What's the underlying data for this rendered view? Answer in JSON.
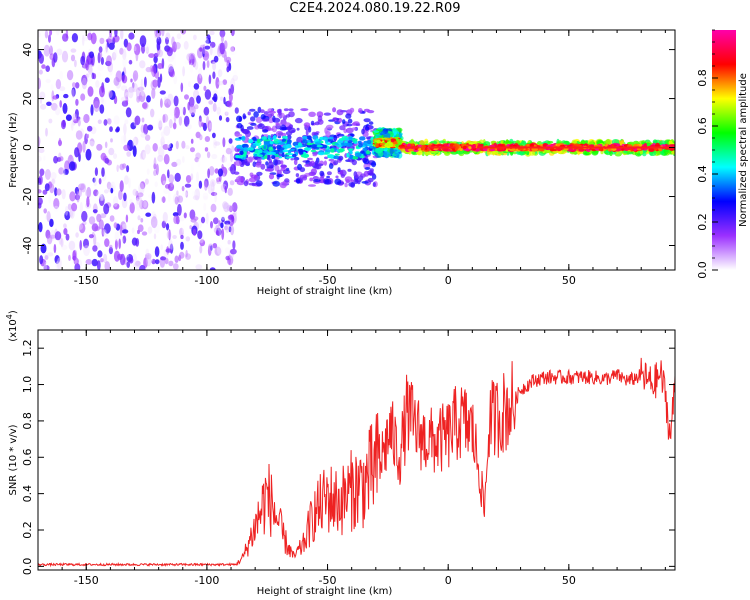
{
  "figure": {
    "title": "C2E4.2024.080.19.22.R09"
  },
  "chart_data": [
    {
      "type": "heatmap",
      "name": "spectrogram",
      "title": "",
      "xlabel": "Height of straight line (km)",
      "ylabel": "Frequency (Hz)",
      "xlim": [
        -170,
        94
      ],
      "ylim": [
        -50,
        48
      ],
      "xticks": [
        -150,
        -100,
        -50,
        0,
        50
      ],
      "xtick_labels": [
        "-150",
        "-100",
        "-50",
        "0",
        "50"
      ],
      "yticks": [
        -40,
        -20,
        0,
        20,
        40
      ],
      "ytick_labels": [
        "-40",
        "-20",
        "0",
        "20",
        "40"
      ],
      "regions": [
        {
          "x_start": -170,
          "x_end": -88,
          "freq_min": -50,
          "freq_max": 48,
          "pattern": "scattered noise",
          "amplitude_range": [
            0.0,
            0.25
          ]
        },
        {
          "x_start": -88,
          "x_end": -30,
          "freq_min": -12,
          "freq_max": 12,
          "pattern": "noisy signal band",
          "amplitude_range": [
            0.1,
            0.5
          ]
        },
        {
          "x_start": -30,
          "x_end": -20,
          "freq_min": -2,
          "freq_max": 6,
          "pattern": "emerging line",
          "amplitude_range": [
            0.3,
            0.9
          ]
        },
        {
          "x_start": -20,
          "x_end": 94,
          "freq_min": -3,
          "freq_max": 3,
          "pattern": "coherent line",
          "amplitude_range": [
            0.5,
            1.0
          ]
        }
      ],
      "colorbar": {
        "label": "Normalized spectral amplitude",
        "range": [
          0.0,
          1.0
        ],
        "ticks": [
          0.0,
          0.2,
          0.4,
          0.6,
          0.8
        ],
        "tick_labels": [
          "0.0",
          "0.2",
          "0.4",
          "0.6",
          "0.8"
        ],
        "colors": [
          "#ffffff",
          "#9b30ff",
          "#0000ff",
          "#00ffff",
          "#00ff00",
          "#ffff00",
          "#ff0000",
          "#ff00aa"
        ]
      }
    },
    {
      "type": "line",
      "name": "snr",
      "title": "",
      "xlabel": "Height of straight line (km)",
      "ylabel": "SNR (10 * v/v)",
      "y_multiplier_label": "(x10",
      "y_multiplier_exponent": "4",
      "xlim": [
        -170,
        94
      ],
      "ylim": [
        -0.02,
        1.3
      ],
      "xticks": [
        -150,
        -100,
        -50,
        0,
        50
      ],
      "xtick_labels": [
        "-150",
        "-100",
        "-50",
        "0",
        "50"
      ],
      "yticks": [
        0.0,
        0.2,
        0.4,
        0.6,
        0.8,
        1.0,
        1.2
      ],
      "ytick_labels": [
        "0.0",
        "0.2",
        "0.4",
        "0.6",
        "0.8",
        "1.0",
        "1.2"
      ],
      "color": "#ee2222",
      "series": [
        {
          "name": "SNR",
          "points": [
            [
              -170,
              0.01
            ],
            [
              -150,
              0.01
            ],
            [
              -120,
              0.01
            ],
            [
              -95,
              0.01
            ],
            [
              -88,
              0.01
            ],
            [
              -85,
              0.05
            ],
            [
              -80,
              0.22
            ],
            [
              -75,
              0.4
            ],
            [
              -72,
              0.3
            ],
            [
              -68,
              0.15
            ],
            [
              -64,
              0.05
            ],
            [
              -60,
              0.12
            ],
            [
              -56,
              0.28
            ],
            [
              -50,
              0.38
            ],
            [
              -45,
              0.35
            ],
            [
              -40,
              0.42
            ],
            [
              -35,
              0.45
            ],
            [
              -30,
              0.55
            ],
            [
              -27,
              0.62
            ],
            [
              -24,
              0.75
            ],
            [
              -20,
              0.6
            ],
            [
              -17,
              0.85
            ],
            [
              -13,
              0.75
            ],
            [
              -10,
              0.7
            ],
            [
              -5,
              0.68
            ],
            [
              0,
              0.72
            ],
            [
              3,
              0.78
            ],
            [
              6,
              0.8
            ],
            [
              10,
              0.75
            ],
            [
              13,
              0.52
            ],
            [
              15,
              0.3
            ],
            [
              17,
              0.8
            ],
            [
              20,
              0.82
            ],
            [
              23,
              0.85
            ],
            [
              27,
              0.9
            ],
            [
              30,
              0.97
            ],
            [
              35,
              1.02
            ],
            [
              40,
              1.04
            ],
            [
              50,
              1.04
            ],
            [
              60,
              1.04
            ],
            [
              65,
              1.03
            ],
            [
              70,
              1.05
            ],
            [
              75,
              1.02
            ],
            [
              80,
              1.05
            ],
            [
              85,
              1.0
            ],
            [
              88,
              1.06
            ],
            [
              90,
              0.95
            ],
            [
              92,
              0.7
            ],
            [
              94,
              1.0
            ]
          ]
        }
      ]
    }
  ]
}
